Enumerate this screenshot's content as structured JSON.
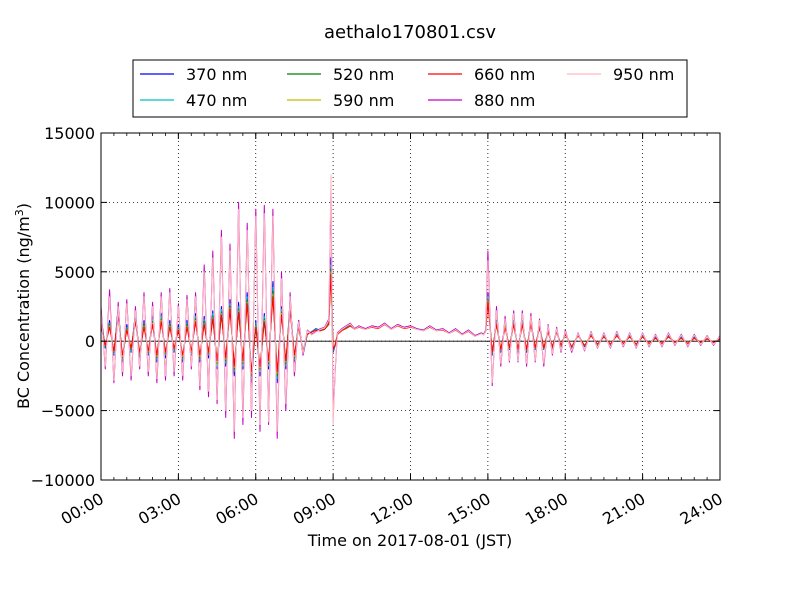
{
  "chart_data": {
    "type": "line",
    "title": "aethalo170801.csv",
    "xlabel": "Time on 2017-08-01 (JST)",
    "ylabel_main": "BC Concentration (ng/m",
    "ylabel_sup": "3",
    "ylabel_close": ")",
    "xlim": [
      "00:00",
      "24:00"
    ],
    "ylim": [
      -10000,
      15000
    ],
    "x_ticks": [
      "00:00",
      "03:00",
      "06:00",
      "09:00",
      "12:00",
      "15:00",
      "18:00",
      "21:00",
      "24:00"
    ],
    "y_ticks": [
      -10000,
      -5000,
      0,
      5000,
      10000,
      15000
    ],
    "y_tick_labels": [
      "−10000",
      "−5000",
      "0",
      "5000",
      "10000",
      "15000"
    ],
    "grid": true,
    "legend_placement": "top-center-above-axes",
    "x_sample": [
      "00:00",
      "00:10",
      "00:20",
      "00:30",
      "00:40",
      "00:50",
      "01:00",
      "01:10",
      "01:20",
      "01:30",
      "01:40",
      "01:50",
      "02:00",
      "02:10",
      "02:20",
      "02:30",
      "02:40",
      "02:50",
      "03:00",
      "03:10",
      "03:20",
      "03:30",
      "03:40",
      "03:50",
      "04:00",
      "04:10",
      "04:20",
      "04:30",
      "04:40",
      "04:50",
      "05:00",
      "05:10",
      "05:20",
      "05:30",
      "05:40",
      "05:50",
      "06:00",
      "06:10",
      "06:20",
      "06:30",
      "06:40",
      "06:50",
      "07:00",
      "07:10",
      "07:20",
      "07:30",
      "07:40",
      "07:50",
      "08:00",
      "08:10",
      "08:20",
      "08:30",
      "08:40",
      "08:50",
      "08:55",
      "09:00",
      "09:05",
      "09:10",
      "09:20",
      "09:30",
      "09:40",
      "09:50",
      "10:00",
      "10:15",
      "10:30",
      "10:45",
      "11:00",
      "11:15",
      "11:30",
      "11:45",
      "12:00",
      "12:15",
      "12:30",
      "12:45",
      "13:00",
      "13:15",
      "13:30",
      "13:45",
      "14:00",
      "14:15",
      "14:30",
      "14:45",
      "14:50",
      "14:55",
      "15:00",
      "15:10",
      "15:20",
      "15:30",
      "15:40",
      "15:50",
      "16:00",
      "16:10",
      "16:20",
      "16:30",
      "16:40",
      "16:50",
      "17:00",
      "17:10",
      "17:20",
      "17:30",
      "17:40",
      "17:50",
      "18:00",
      "18:15",
      "18:30",
      "18:45",
      "19:00",
      "19:15",
      "19:30",
      "19:45",
      "20:00",
      "20:15",
      "20:30",
      "20:45",
      "21:00",
      "21:15",
      "21:30",
      "21:45",
      "22:00",
      "22:15",
      "22:30",
      "22:45",
      "23:00",
      "23:15",
      "23:30",
      "23:45",
      "24:00"
    ],
    "series": [
      {
        "name": "370 nm",
        "color": "#0000ff",
        "values": [
          1800,
          -500,
          1500,
          -1000,
          2500,
          -1500,
          1200,
          -800,
          2000,
          -1200,
          1500,
          -1000,
          1800,
          -1500,
          2000,
          -1200,
          1500,
          -800,
          1200,
          -1500,
          1500,
          -1000,
          2000,
          -1500,
          1800,
          -1200,
          2200,
          -2000,
          2500,
          -1800,
          3000,
          -2500,
          2800,
          -2000,
          3500,
          -3000,
          1500,
          -2500,
          2000,
          -2000,
          4300,
          -3000,
          2500,
          -2000,
          3000,
          -1500,
          1500,
          -1000,
          500,
          700,
          900,
          800,
          900,
          1500,
          6000,
          -800,
          -300,
          500,
          800,
          1000,
          1200,
          900,
          1100,
          900,
          1100,
          1000,
          1300,
          900,
          1200,
          1000,
          1100,
          900,
          800,
          1100,
          800,
          900,
          600,
          900,
          500,
          800,
          400,
          600,
          500,
          800,
          3500,
          -1000,
          1500,
          -800,
          1200,
          -600,
          1500,
          -800,
          1500,
          -800,
          1500,
          -600,
          1200,
          -600,
          800,
          -500,
          800,
          -400,
          600,
          -500,
          500,
          -400,
          500,
          -300,
          400,
          -300,
          500,
          -200,
          400,
          -300,
          400,
          -200,
          300,
          -200,
          400,
          -100,
          300,
          -200,
          300,
          -100,
          200,
          -100,
          200
        ]
      },
      {
        "name": "470 nm",
        "color": "#00c0c0",
        "values": [
          1500,
          -400,
          1300,
          -900,
          2200,
          -1300,
          1000,
          -700,
          1800,
          -1000,
          1300,
          -900,
          1600,
          -1300,
          1800,
          -1000,
          1300,
          -700,
          1000,
          -1300,
          1300,
          -900,
          1800,
          -1300,
          1600,
          -1000,
          2000,
          -1800,
          2300,
          -1600,
          2700,
          -2200,
          2500,
          -1800,
          3200,
          -2700,
          1300,
          -2200,
          1800,
          -1800,
          3900,
          -2700,
          2300,
          -1800,
          2700,
          -1300,
          1300,
          -900,
          500,
          700,
          850,
          800,
          900,
          1400,
          5500,
          -700,
          -250,
          500,
          800,
          950,
          1150,
          900,
          1050,
          900,
          1050,
          950,
          1250,
          900,
          1150,
          950,
          1050,
          900,
          800,
          1050,
          800,
          850,
          600,
          850,
          500,
          750,
          400,
          600,
          500,
          750,
          3200,
          -900,
          1400,
          -700,
          1100,
          -550,
          1400,
          -700,
          1400,
          -700,
          1400,
          -550,
          1100,
          -550,
          750,
          -450,
          750,
          -350,
          550,
          -450,
          450,
          -350,
          450,
          -250,
          350,
          -250,
          450,
          -200,
          350,
          -250,
          350,
          -200,
          250,
          -200,
          350,
          -100,
          250,
          -200,
          250,
          -100,
          200,
          -100,
          200
        ]
      },
      {
        "name": "520 nm",
        "color": "#008000",
        "values": [
          1300,
          -350,
          1200,
          -800,
          2000,
          -1200,
          900,
          -600,
          1600,
          -900,
          1200,
          -800,
          1400,
          -1200,
          1600,
          -900,
          1200,
          -600,
          900,
          -1200,
          1200,
          -800,
          1600,
          -1200,
          1400,
          -900,
          1800,
          -1600,
          2100,
          -1400,
          2500,
          -2000,
          2300,
          -1600,
          3000,
          -2500,
          1200,
          -2000,
          1600,
          -1600,
          3600,
          -2500,
          2100,
          -1600,
          2500,
          -1200,
          1200,
          -800,
          500,
          650,
          800,
          750,
          850,
          1300,
          5200,
          -650,
          -200,
          480,
          780,
          930,
          1120,
          880,
          1030,
          880,
          1030,
          930,
          1230,
          880,
          1130,
          930,
          1030,
          880,
          780,
          1030,
          780,
          830,
          580,
          830,
          480,
          730,
          380,
          580,
          480,
          730,
          3000,
          -850,
          1300,
          -650,
          1050,
          -500,
          1300,
          -650,
          1300,
          -650,
          1300,
          -500,
          1050,
          -500,
          700,
          -420,
          700,
          -330,
          520,
          -420,
          420,
          -330,
          420,
          -230,
          330,
          -230,
          420,
          -180,
          330,
          -230,
          330,
          -180,
          230,
          -180,
          330,
          -90,
          230,
          -180,
          230,
          -90,
          180,
          -90,
          180
        ]
      },
      {
        "name": "590 nm",
        "color": "#c0c000",
        "values": [
          1200,
          -300,
          1100,
          -750,
          1900,
          -1100,
          850,
          -550,
          1500,
          -850,
          1100,
          -750,
          1300,
          -1100,
          1500,
          -850,
          1100,
          -550,
          850,
          -1100,
          1100,
          -750,
          1500,
          -1100,
          1300,
          -850,
          1700,
          -1500,
          2000,
          -1300,
          2400,
          -1900,
          2200,
          -1500,
          2800,
          -2300,
          1100,
          -1900,
          1500,
          -1500,
          3400,
          -2300,
          2000,
          -1500,
          2300,
          -1100,
          1100,
          -750,
          500,
          650,
          800,
          750,
          850,
          1250,
          5000,
          -600,
          -200,
          480,
          770,
          920,
          1110,
          870,
          1020,
          870,
          1020,
          920,
          1220,
          870,
          1120,
          920,
          1020,
          870,
          770,
          1020,
          770,
          820,
          570,
          820,
          470,
          720,
          370,
          570,
          470,
          720,
          2900,
          -800,
          1250,
          -620,
          1000,
          -480,
          1250,
          -620,
          1250,
          -620,
          1250,
          -480,
          1000,
          -480,
          680,
          -400,
          680,
          -320,
          500,
          -400,
          400,
          -320,
          400,
          -220,
          320,
          -220,
          400,
          -170,
          320,
          -220,
          320,
          -170,
          220,
          -170,
          320,
          -80,
          220,
          -170,
          220,
          -80,
          170,
          -80,
          170
        ]
      },
      {
        "name": "660 nm",
        "color": "#ff0000",
        "values": [
          1100,
          -300,
          1000,
          -700,
          1800,
          -1000,
          800,
          -500,
          1400,
          -800,
          1000,
          -700,
          1200,
          -1000,
          1400,
          -800,
          1000,
          -500,
          800,
          -1000,
          1000,
          -700,
          1400,
          -1000,
          1200,
          -800,
          1600,
          -1400,
          1900,
          -1200,
          2300,
          -1800,
          2100,
          -1400,
          2700,
          -2200,
          1000,
          -1800,
          1400,
          -1400,
          3200,
          -2200,
          1900,
          -1400,
          2200,
          -1000,
          1000,
          -700,
          500,
          650,
          800,
          750,
          850,
          1200,
          4800,
          -600,
          -200,
          480,
          760,
          910,
          1100,
          860,
          1010,
          860,
          1010,
          910,
          1210,
          860,
          1110,
          910,
          1010,
          860,
          760,
          1010,
          760,
          810,
          560,
          810,
          460,
          710,
          360,
          560,
          460,
          710,
          2800,
          -780,
          1200,
          -600,
          980,
          -470,
          1200,
          -600,
          1200,
          -600,
          1200,
          -470,
          980,
          -470,
          660,
          -390,
          660,
          -310,
          490,
          -390,
          390,
          -310,
          390,
          -210,
          310,
          -210,
          390,
          -160,
          310,
          -210,
          310,
          -160,
          210,
          -160,
          310,
          -80,
          210,
          -160,
          210,
          -80,
          160,
          -80,
          160
        ]
      },
      {
        "name": "880 nm",
        "color": "#c000c0",
        "values": [
          2500,
          -2000,
          3700,
          -3000,
          2800,
          -2500,
          3000,
          -2800,
          2500,
          -2000,
          3500,
          -2500,
          2800,
          -3000,
          3500,
          -2800,
          3800,
          -2500,
          2700,
          -2800,
          3300,
          -2000,
          3500,
          -3500,
          5500,
          -4000,
          6500,
          -4500,
          8000,
          -5500,
          7000,
          -7000,
          10000,
          -6000,
          8500,
          -5500,
          9500,
          -6500,
          9800,
          -6000,
          9500,
          -7000,
          5000,
          -5000,
          3500,
          -2500,
          1500,
          -1000,
          800,
          500,
          700,
          900,
          1000,
          1600,
          11000,
          -5500,
          -2000,
          600,
          900,
          1100,
          1300,
          900,
          1100,
          900,
          1100,
          1000,
          1300,
          900,
          1200,
          1000,
          1100,
          900,
          800,
          1100,
          800,
          900,
          600,
          900,
          500,
          800,
          400,
          600,
          500,
          800,
          6500,
          -3200,
          2500,
          -1800,
          1800,
          -1500,
          2200,
          -1500,
          2200,
          -1800,
          2000,
          -1500,
          1600,
          -1800,
          1200,
          -1000,
          1000,
          -800,
          800,
          -800,
          600,
          -700,
          700,
          -500,
          600,
          -500,
          700,
          -400,
          600,
          -500,
          600,
          -400,
          500,
          -400,
          600,
          -300,
          500,
          -400,
          500,
          -300,
          400,
          -300,
          400
        ]
      },
      {
        "name": "950 nm",
        "color": "#ffb6c1",
        "values": [
          2200,
          -1800,
          3200,
          -2800,
          2500,
          -2200,
          2700,
          -2500,
          2200,
          -1800,
          3200,
          -2200,
          2500,
          -2700,
          3200,
          -2500,
          3500,
          -2200,
          2500,
          -2500,
          3000,
          -1800,
          3200,
          -3200,
          5000,
          -3600,
          6000,
          -4200,
          7500,
          -5000,
          6500,
          -6500,
          9500,
          -5500,
          8000,
          -5000,
          9000,
          -6000,
          9200,
          -5800,
          9000,
          -6500,
          4500,
          -4500,
          3200,
          -2200,
          1400,
          -900,
          750,
          450,
          650,
          850,
          950,
          1500,
          12000,
          -6000,
          -1800,
          550,
          850,
          1050,
          1250,
          850,
          1050,
          850,
          1050,
          950,
          1250,
          850,
          1150,
          950,
          1050,
          850,
          750,
          1050,
          750,
          850,
          550,
          850,
          450,
          750,
          350,
          550,
          450,
          750,
          5800,
          -3000,
          2200,
          -1600,
          1600,
          -1400,
          2000,
          -1400,
          2000,
          -1600,
          1800,
          -1400,
          1500,
          -1600,
          1100,
          -900,
          900,
          -700,
          700,
          -700,
          550,
          -650,
          650,
          -450,
          550,
          -450,
          650,
          -350,
          550,
          -450,
          550,
          -350,
          450,
          -350,
          550,
          -250,
          450,
          -350,
          450,
          -250,
          350,
          -250,
          350
        ]
      }
    ]
  }
}
